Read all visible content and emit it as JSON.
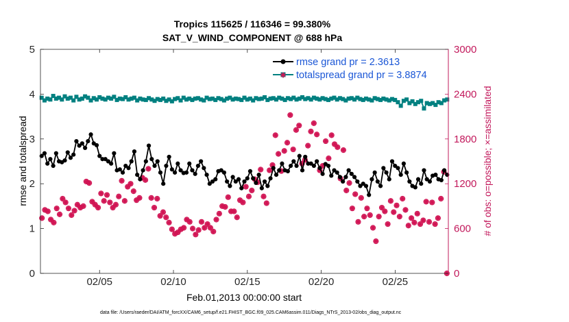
{
  "chart_data": {
    "type": "line",
    "title_line1": "Tropics 115625 / 116346 = 99.380%",
    "title_line2": "SAT_V_WIND_COMPONENT @ 688 hPa",
    "xlabel": "Feb.01,2013 00:00:00 start",
    "ylabel_left": "rmse and totalspread",
    "ylabel_right": "# of obs: o=possible; ×=assimilated",
    "footnote": "data file: /Users/raeder/DAI/ATM_forcXX/CAM6_setup/f.e21.FHIST_BGC.f09_025.CAM6assim.011/Diags_NTrS_2013-02/obs_diag_output.nc",
    "xlim": [
      1,
      28.6
    ],
    "ylim_left": [
      0,
      5
    ],
    "ylim_right": [
      0,
      3000
    ],
    "x_ticks": [
      5,
      10,
      15,
      20,
      25
    ],
    "x_tick_labels": [
      "02/05",
      "02/10",
      "02/15",
      "02/20",
      "02/25"
    ],
    "y_ticks_left": [
      0,
      1,
      2,
      3,
      4,
      5
    ],
    "y_ticks_right": [
      0,
      600,
      1200,
      1800,
      2400,
      3000
    ],
    "legend_location": "top-right",
    "colors": {
      "rmse": "#000000",
      "spread": "#008080",
      "obs": "#d11554",
      "right_axis": "#c2185b",
      "legend_text": "#1a56d6"
    },
    "series": [
      {
        "name": "rmse grand pr = 2.3613",
        "axis": "left",
        "values": [
          2.62,
          2.68,
          2.45,
          2.55,
          2.4,
          2.68,
          2.5,
          2.48,
          2.52,
          2.7,
          2.58,
          2.65,
          2.95,
          2.85,
          2.9,
          2.8,
          2.95,
          3.1,
          2.9,
          2.86,
          2.62,
          2.55,
          2.55,
          2.5,
          2.45,
          2.68,
          2.3,
          2.32,
          2.25,
          2.4,
          2.35,
          2.5,
          2.72,
          2.2,
          2.1,
          2.3,
          2.5,
          2.85,
          2.55,
          2.4,
          2.5,
          2.25,
          2.0,
          2.4,
          2.6,
          2.32,
          2.25,
          2.45,
          2.3,
          2.24,
          2.25,
          2.45,
          2.3,
          2.22,
          2.4,
          2.5,
          2.35,
          2.2,
          2.0,
          2.05,
          2.1,
          2.28,
          2.3,
          2.25,
          2.05,
          1.95,
          2.15,
          2.05,
          2.1,
          1.9,
          2.05,
          2.12,
          2.28,
          2.12,
          2.02,
          2.2,
          1.9,
          2.05,
          1.95,
          2.12,
          2.35,
          2.2,
          2.3,
          2.45,
          2.3,
          2.28,
          2.4,
          2.5,
          2.4,
          2.62,
          2.3,
          2.6,
          2.45,
          2.45,
          2.4,
          2.5,
          2.35,
          2.22,
          2.44,
          2.4,
          2.18,
          2.3,
          2.25,
          2.15,
          2.05,
          2.15,
          2.3,
          2.22,
          2.15,
          2.05,
          1.95,
          2.0,
          1.95,
          1.75,
          2.1,
          2.25,
          2.05,
          1.95,
          2.35,
          2.25,
          2.1,
          2.5,
          2.4,
          2.35,
          2.2,
          2.45,
          2.25,
          2.05,
          1.95,
          1.92,
          2.1,
          2.0,
          2.3,
          2.1,
          2.05,
          2.18,
          2.2,
          2.1,
          2.08,
          2.3,
          2.2
        ]
      },
      {
        "name": "totalspread grand pr = 3.8874",
        "axis": "left",
        "values": [
          3.92,
          3.86,
          3.9,
          3.88,
          3.96,
          3.9,
          3.92,
          3.88,
          3.95,
          3.9,
          3.92,
          3.86,
          3.94,
          3.88,
          3.9,
          3.95,
          3.92,
          3.86,
          3.91,
          3.88,
          3.93,
          3.9,
          3.88,
          3.92,
          3.9,
          3.94,
          3.87,
          3.9,
          3.89,
          3.93,
          3.88,
          3.9,
          3.92,
          3.86,
          3.9,
          3.88,
          3.87,
          3.91,
          3.88,
          3.85,
          3.89,
          3.87,
          3.9,
          3.85,
          3.88,
          3.84,
          3.89,
          3.91,
          3.86,
          3.92,
          3.88,
          3.9,
          3.87,
          3.9,
          3.91,
          3.88,
          3.86,
          3.92,
          3.89,
          3.9,
          3.87,
          3.91,
          3.89,
          3.86,
          3.9,
          3.92,
          3.88,
          3.9,
          3.89,
          3.87,
          3.92,
          3.88,
          3.9,
          3.86,
          3.91,
          3.89,
          3.9,
          3.93,
          3.87,
          3.9,
          3.91,
          3.88,
          3.92,
          3.9,
          3.87,
          3.91,
          3.89,
          3.92,
          3.88,
          3.9,
          3.93,
          3.89,
          3.91,
          3.88,
          3.92,
          3.9,
          3.88,
          3.91,
          3.89,
          3.87,
          3.9,
          3.92,
          3.88,
          3.91,
          3.89,
          3.86,
          3.9,
          3.91,
          3.88,
          3.92,
          3.89,
          3.87,
          3.9,
          3.88,
          3.86,
          3.91,
          3.89,
          3.87,
          3.9,
          3.88,
          3.86,
          3.89,
          3.87,
          3.82,
          3.74,
          3.85,
          3.88,
          3.8,
          3.84,
          3.78,
          3.82,
          3.85,
          3.68,
          3.8,
          3.78,
          3.8,
          3.76,
          3.82,
          3.8,
          3.86,
          3.88
        ]
      },
      {
        "name": "obs possible / assimilated",
        "axis": "right",
        "x": [
          1.1,
          1.3,
          1.5,
          1.7,
          1.9,
          2.1,
          2.3,
          2.5,
          2.7,
          2.9,
          3.1,
          3.3,
          3.5,
          3.7,
          3.9,
          4.1,
          4.3,
          4.5,
          4.7,
          4.9,
          5.1,
          5.3,
          5.5,
          5.7,
          5.9,
          6.1,
          6.3,
          6.5,
          6.7,
          6.9,
          7.1,
          7.3,
          7.5,
          7.7,
          7.9,
          8.1,
          8.3,
          8.5,
          8.7,
          8.9,
          9.1,
          9.3,
          9.5,
          9.7,
          9.9,
          10.1,
          10.3,
          10.5,
          10.7,
          10.9,
          11.1,
          11.3,
          11.5,
          11.7,
          11.9,
          12.1,
          12.3,
          12.5,
          12.7,
          12.9,
          13.1,
          13.3,
          13.5,
          13.7,
          13.9,
          14.1,
          14.3,
          14.5,
          14.7,
          14.9,
          15.1,
          15.3,
          15.5,
          15.7,
          15.9,
          16.1,
          16.3,
          16.5,
          16.7,
          16.9,
          17.1,
          17.3,
          17.5,
          17.7,
          17.9,
          18.1,
          18.3,
          18.5,
          18.7,
          18.9,
          19.1,
          19.3,
          19.5,
          19.7,
          19.9,
          20.1,
          20.3,
          20.5,
          20.7,
          20.9,
          21.1,
          21.3,
          21.5,
          21.7,
          21.9,
          22.1,
          22.3,
          22.5,
          22.7,
          22.9,
          23.1,
          23.3,
          23.5,
          23.7,
          23.9,
          24.1,
          24.3,
          24.5,
          24.7,
          24.9,
          25.1,
          25.3,
          25.5,
          25.7,
          25.9,
          26.1,
          26.3,
          26.5,
          26.7,
          26.9,
          27.1,
          27.3,
          27.5,
          27.7,
          27.9,
          28.1,
          28.3,
          28.5
        ],
        "values": [
          740,
          850,
          830,
          720,
          680,
          870,
          790,
          1000,
          950,
          870,
          780,
          840,
          920,
          880,
          900,
          1230,
          1210,
          960,
          920,
          880,
          1070,
          970,
          1050,
          950,
          880,
          920,
          1030,
          1240,
          970,
          1160,
          1200,
          1100,
          980,
          1010,
          1280,
          1250,
          1400,
          1010,
          880,
          1000,
          770,
          820,
          750,
          680,
          590,
          530,
          550,
          590,
          610,
          720,
          690,
          600,
          520,
          580,
          690,
          610,
          660,
          610,
          560,
          720,
          800,
          900,
          890,
          1020,
          830,
          830,
          750,
          980,
          950,
          1160,
          1030,
          1110,
          1260,
          1220,
          1390,
          1030,
          940,
          1380,
          1450,
          1850,
          1600,
          1370,
          1640,
          1750,
          2120,
          1660,
          1920,
          1980,
          1470,
          1520,
          1710,
          1900,
          2010,
          1860,
          1380,
          1440,
          1770,
          1540,
          1850,
          1730,
          1690,
          1270,
          1650,
          1110,
          1210,
          870,
          1060,
          690,
          1010,
          760,
          870,
          780,
          610,
          430,
          760,
          880,
          830,
          660,
          970,
          820,
          910,
          760,
          1000,
          850,
          640,
          740,
          680,
          800,
          660,
          710,
          960,
          690,
          950,
          660,
          740,
          1000,
          1360,
          0
        ]
      }
    ]
  }
}
